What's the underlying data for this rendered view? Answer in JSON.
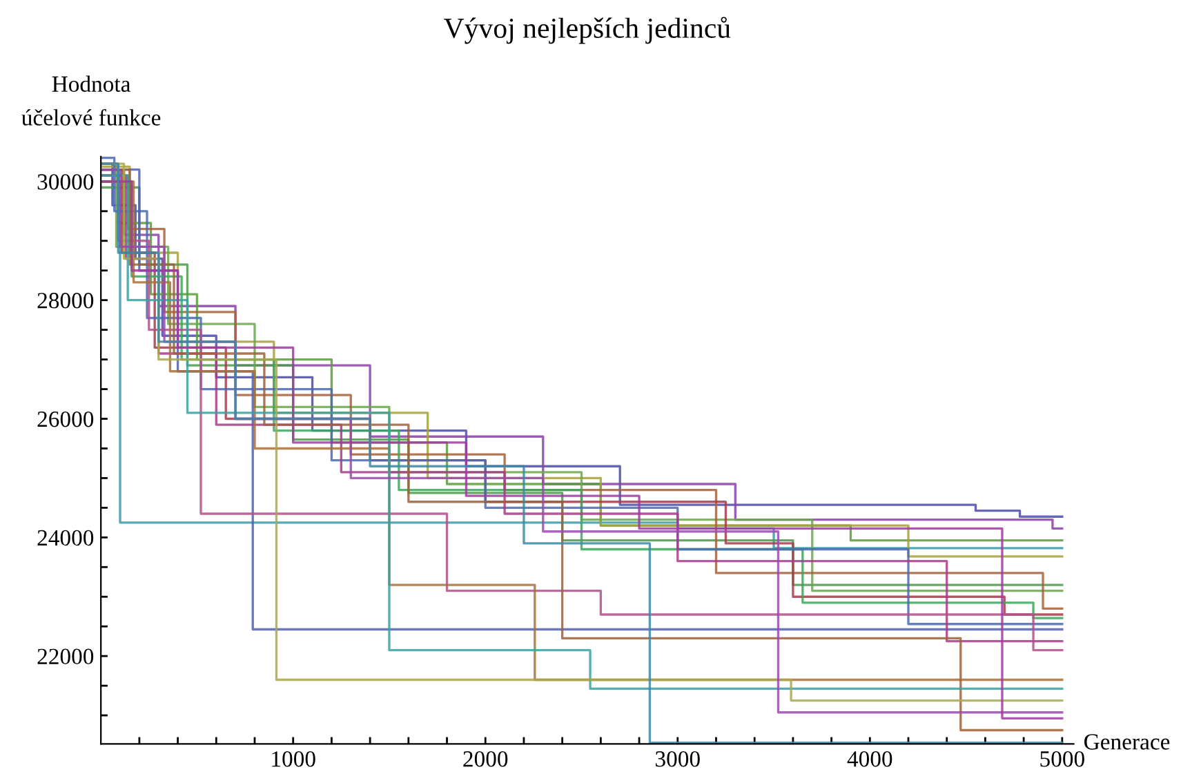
{
  "chart_data": {
    "type": "step",
    "title": "Vývoj nejlepších jedinců",
    "ylabel": "Hodnota\núčelové funkce",
    "xlabel": "Generace",
    "xlim": [
      0,
      5060
    ],
    "ylim": [
      20520,
      30420
    ],
    "xticks": [
      {
        "value": 200,
        "label": null
      },
      {
        "value": 400,
        "label": null
      },
      {
        "value": 600,
        "label": null
      },
      {
        "value": 800,
        "label": null
      },
      1000,
      {
        "value": 1200,
        "label": null
      },
      {
        "value": 1400,
        "label": null
      },
      {
        "value": 1600,
        "label": null
      },
      {
        "value": 1800,
        "label": null
      },
      2000,
      {
        "value": 2200,
        "label": null
      },
      {
        "value": 2400,
        "label": null
      },
      {
        "value": 2600,
        "label": null
      },
      {
        "value": 2800,
        "label": null
      },
      3000,
      {
        "value": 3200,
        "label": null
      },
      {
        "value": 3400,
        "label": null
      },
      {
        "value": 3600,
        "label": null
      },
      {
        "value": 3800,
        "label": null
      },
      4000,
      {
        "value": 4200,
        "label": null
      },
      {
        "value": 4400,
        "label": null
      },
      {
        "value": 4600,
        "label": null
      },
      {
        "value": 4800,
        "label": null
      },
      5000
    ],
    "yticks": [
      {
        "value": 21000,
        "label": null
      },
      {
        "value": 21500,
        "label": null
      },
      22000,
      {
        "value": 22500,
        "label": null
      },
      {
        "value": 23000,
        "label": null
      },
      {
        "value": 23500,
        "label": null
      },
      24000,
      {
        "value": 24500,
        "label": null
      },
      {
        "value": 25000,
        "label": null
      },
      {
        "value": 25500,
        "label": null
      },
      26000,
      {
        "value": 26500,
        "label": null
      },
      {
        "value": 27000,
        "label": null
      },
      {
        "value": 27500,
        "label": null
      },
      28000,
      {
        "value": 28500,
        "label": null
      },
      {
        "value": 29000,
        "label": null
      },
      {
        "value": 29500,
        "label": null
      },
      30000
    ],
    "series": [
      {
        "color": "#4b4bab",
        "x": [
          0,
          60,
          180,
          320,
          600,
          1100,
          1900,
          2700,
          4550,
          4780,
          5000
        ],
        "values": [
          30300,
          29600,
          28700,
          27400,
          26700,
          25800,
          25200,
          24550,
          24450,
          24350,
          24350
        ]
      },
      {
        "color": "#8b3fa8",
        "x": [
          0,
          120,
          300,
          700,
          1400,
          2300,
          3300,
          4950,
          5000
        ],
        "values": [
          30200,
          29100,
          27900,
          26900,
          25700,
          24900,
          24300,
          24150,
          24150
        ]
      },
      {
        "color": "#5a9e3a",
        "x": [
          0,
          90,
          260,
          500,
          1200,
          1800,
          2600,
          3900,
          5000
        ],
        "values": [
          30100,
          29300,
          28100,
          27000,
          25600,
          24900,
          24200,
          23950,
          23950
        ]
      },
      {
        "color": "#3a9aa8",
        "x": [
          0,
          100,
          3000,
          3500,
          5000
        ],
        "values": [
          30000,
          24250,
          24150,
          23820,
          23820
        ]
      },
      {
        "color": "#a8a03a",
        "x": [
          0,
          150,
          400,
          900,
          1700,
          2600,
          4200,
          5000
        ],
        "values": [
          30250,
          28800,
          27300,
          26100,
          25000,
          24200,
          23680,
          23680
        ]
      },
      {
        "color": "#4a9a4a",
        "x": [
          0,
          200,
          450,
          1000,
          1600,
          2400,
          3600,
          5000
        ],
        "values": [
          29900,
          28600,
          26900,
          25650,
          24750,
          23950,
          23200,
          23200
        ]
      },
      {
        "color": "#6aa84a",
        "x": [
          0,
          80,
          350,
          800,
          1500,
          2500,
          3700,
          5000
        ],
        "values": [
          30300,
          28900,
          27600,
          26200,
          25100,
          24300,
          23100,
          23100
        ]
      },
      {
        "color": "#a8603a",
        "x": [
          0,
          140,
          330,
          700,
          1300,
          2100,
          3200,
          4900,
          5000
        ],
        "values": [
          30100,
          29200,
          27800,
          26400,
          25400,
          24800,
          23400,
          22800,
          22800
        ]
      },
      {
        "color": "#a83a4a",
        "x": [
          0,
          110,
          280,
          650,
          1400,
          2000,
          3250,
          3600,
          4700,
          5000
        ],
        "values": [
          30200,
          28800,
          27200,
          26000,
          25300,
          24600,
          23900,
          23000,
          22700,
          22700
        ]
      },
      {
        "color": "#3aa85a",
        "x": [
          0,
          160,
          420,
          900,
          1550,
          2500,
          3650,
          4850,
          5000
        ],
        "values": [
          30000,
          28400,
          27000,
          25800,
          24800,
          23800,
          22900,
          22640,
          22640
        ]
      },
      {
        "color": "#4a6ab0",
        "x": [
          0,
          70,
          240,
          520,
          1200,
          2000,
          3000,
          4200,
          5000
        ],
        "values": [
          30400,
          29500,
          27700,
          26500,
          25300,
          24500,
          23800,
          22540,
          22540
        ]
      },
      {
        "color": "#5060b0",
        "x": [
          0,
          200,
          400,
          790,
          5000
        ],
        "values": [
          30200,
          28500,
          26800,
          22450,
          22450
        ]
      },
      {
        "color": "#a83a8a",
        "x": [
          0,
          130,
          300,
          600,
          1250,
          2100,
          3000,
          4400,
          5000
        ],
        "values": [
          30100,
          28700,
          27100,
          25900,
          25100,
          24400,
          23600,
          22250,
          22250
        ]
      },
      {
        "color": "#b0508a",
        "x": [
          0,
          90,
          250,
          520,
          1800,
          2600,
          4850,
          5000
        ],
        "values": [
          30300,
          29000,
          27500,
          24400,
          23100,
          22700,
          22100,
          22100
        ]
      },
      {
        "color": "#a8703a",
        "x": [
          0,
          170,
          360,
          800,
          1500,
          2257,
          5000
        ],
        "values": [
          30000,
          28300,
          26800,
          25500,
          23200,
          21600,
          21600
        ]
      },
      {
        "color": "#a0603a",
        "x": [
          0,
          150,
          380,
          850,
          1600,
          2400,
          4472,
          5000
        ],
        "values": [
          30200,
          28600,
          27100,
          25900,
          24600,
          22300,
          20750,
          20750
        ]
      },
      {
        "color": "#3aa0a0",
        "x": [
          0,
          140,
          450,
          1500,
          2545,
          5000
        ],
        "values": [
          30100,
          28000,
          26100,
          22100,
          21450,
          21450
        ]
      },
      {
        "color": "#a8a84a",
        "x": [
          0,
          120,
          300,
          913,
          3590,
          5000
        ],
        "values": [
          30300,
          28700,
          27000,
          21600,
          21250,
          21250
        ]
      },
      {
        "color": "#9a4ab0",
        "x": [
          0,
          100,
          330,
          700,
          1300,
          2300,
          3523,
          5000
        ],
        "values": [
          30200,
          28900,
          27300,
          26000,
          25000,
          24100,
          21050,
          21050
        ]
      },
      {
        "color": "#a03aa0",
        "x": [
          0,
          160,
          400,
          1000,
          1900,
          2800,
          4688,
          5000
        ],
        "values": [
          30000,
          28500,
          27200,
          25600,
          24700,
          24150,
          20950,
          20950
        ]
      },
      {
        "color": "#3a8aa8",
        "x": [
          0,
          90,
          300,
          700,
          1400,
          2200,
          2855,
          5000
        ],
        "values": [
          30300,
          28800,
          27300,
          26000,
          25200,
          23900,
          20540,
          20540
        ]
      }
    ]
  }
}
